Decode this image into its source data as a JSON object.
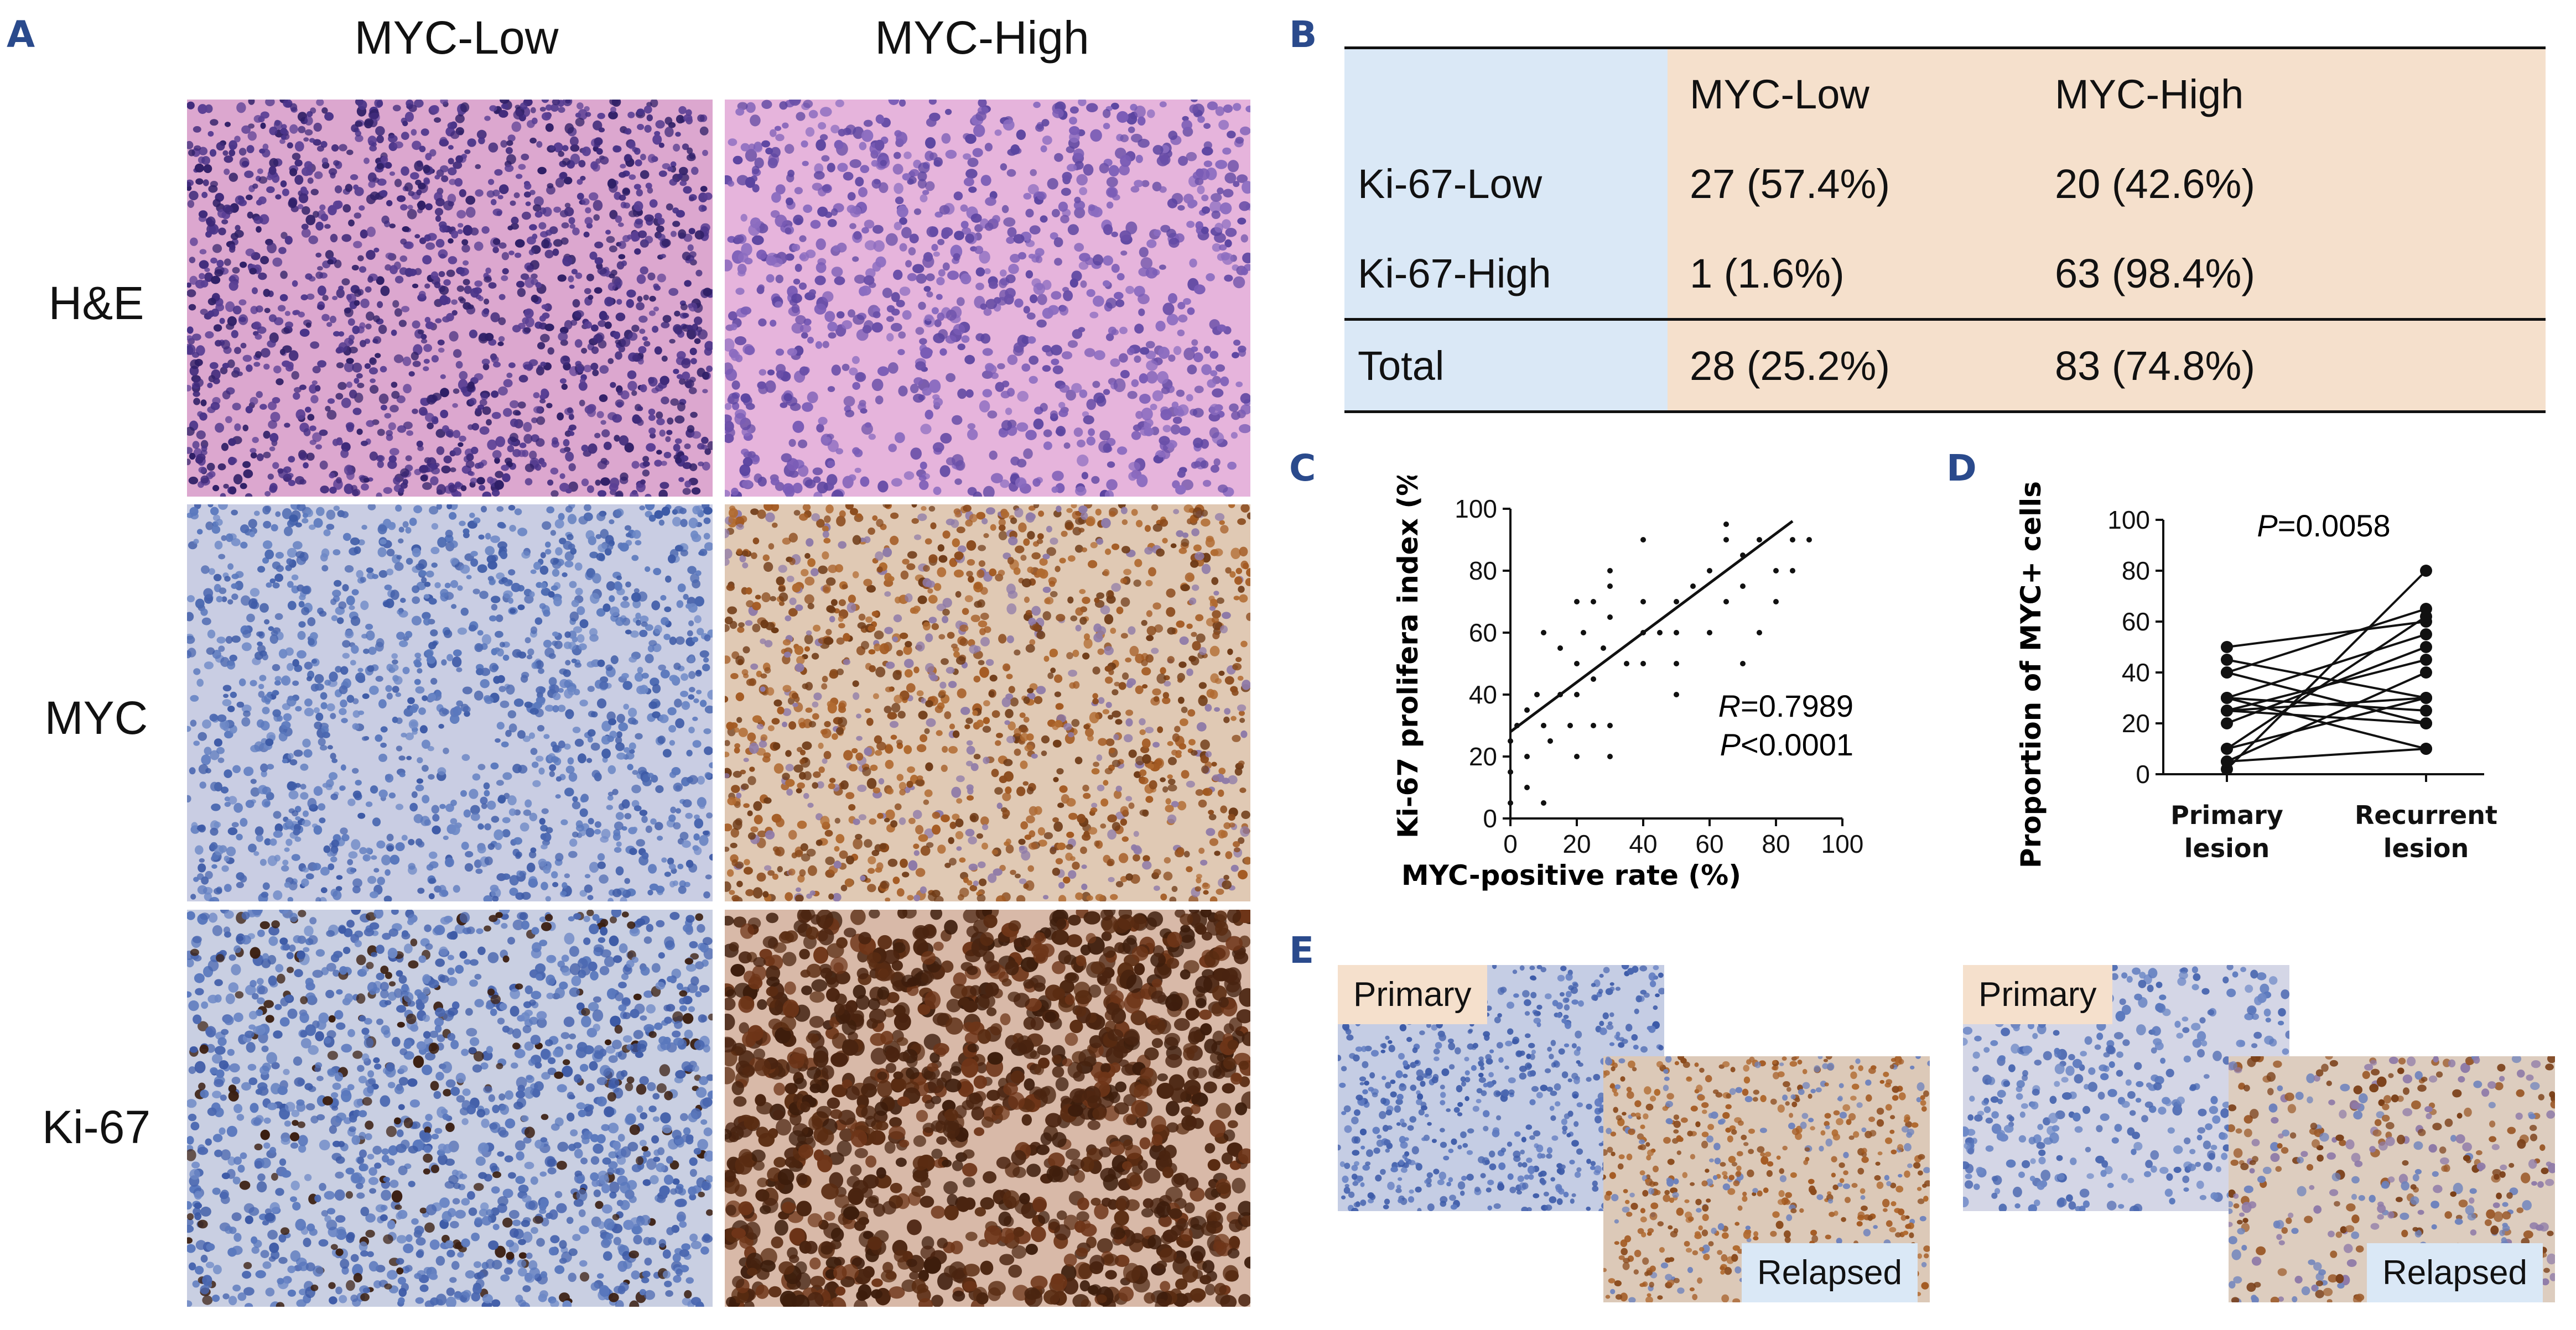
{
  "panels": {
    "A": "A",
    "B": "B",
    "C": "C",
    "D": "D",
    "E": "E"
  },
  "panelA": {
    "columns": [
      "MYC-Low",
      "MYC-High"
    ],
    "rows": [
      "H&E",
      "MYC",
      "Ki-67"
    ]
  },
  "panelB": {
    "header": [
      "",
      "MYC-Low",
      "MYC-High"
    ],
    "rows": [
      [
        "Ki-67-Low",
        "27 (57.4%)",
        "20 (42.6%)"
      ],
      [
        "Ki-67-High",
        "1 (1.6%)",
        "63 (98.4%)"
      ],
      [
        "Total",
        "28 (25.2%)",
        "83 (74.8%)"
      ]
    ]
  },
  "chart_data": [
    {
      "type": "scatter",
      "panel": "C",
      "xlabel": "MYC-positive rate (%)",
      "ylabel": "Ki-67 prolifera index (%)",
      "xlim": [
        0,
        100
      ],
      "ylim": [
        0,
        100
      ],
      "xticks": [
        "0",
        "20",
        "40",
        "60",
        "80",
        "100"
      ],
      "yticks": [
        "0",
        "20",
        "40",
        "60",
        "80",
        "100"
      ],
      "points": [
        [
          0,
          5
        ],
        [
          0,
          15
        ],
        [
          0,
          25
        ],
        [
          2,
          30
        ],
        [
          5,
          10
        ],
        [
          5,
          20
        ],
        [
          5,
          35
        ],
        [
          8,
          40
        ],
        [
          10,
          5
        ],
        [
          10,
          30
        ],
        [
          10,
          60
        ],
        [
          12,
          25
        ],
        [
          15,
          40
        ],
        [
          15,
          55
        ],
        [
          18,
          30
        ],
        [
          20,
          20
        ],
        [
          20,
          40
        ],
        [
          20,
          50
        ],
        [
          20,
          70
        ],
        [
          22,
          60
        ],
        [
          25,
          30
        ],
        [
          25,
          45
        ],
        [
          25,
          70
        ],
        [
          28,
          55
        ],
        [
          30,
          20
        ],
        [
          30,
          30
        ],
        [
          30,
          65
        ],
        [
          30,
          75
        ],
        [
          30,
          80
        ],
        [
          35,
          50
        ],
        [
          40,
          50
        ],
        [
          40,
          60
        ],
        [
          40,
          70
        ],
        [
          40,
          90
        ],
        [
          45,
          60
        ],
        [
          50,
          40
        ],
        [
          50,
          50
        ],
        [
          50,
          60
        ],
        [
          50,
          70
        ],
        [
          55,
          75
        ],
        [
          60,
          60
        ],
        [
          60,
          80
        ],
        [
          65,
          70
        ],
        [
          65,
          90
        ],
        [
          65,
          95
        ],
        [
          70,
          50
        ],
        [
          70,
          75
        ],
        [
          70,
          85
        ],
        [
          75,
          60
        ],
        [
          75,
          90
        ],
        [
          80,
          70
        ],
        [
          80,
          80
        ],
        [
          85,
          80
        ],
        [
          85,
          90
        ],
        [
          90,
          90
        ]
      ],
      "fit": {
        "intercept": 28,
        "slope": 0.8,
        "x_end": 85
      },
      "annotations": {
        "R_label": "R",
        "R_value": "=0.7989",
        "P_label": "P",
        "P_value": "<0.0001"
      }
    },
    {
      "type": "line",
      "panel": "D",
      "ylabel": "Proportion of MYC+ cells",
      "categories": [
        "Primary lesion",
        "Recurrent lesion"
      ],
      "category_lines": [
        [
          "Primary",
          "lesion"
        ],
        [
          "Recurrent",
          "lesion"
        ]
      ],
      "ylim": [
        0,
        100
      ],
      "yticks": [
        "0",
        "20",
        "40",
        "60",
        "80",
        "100"
      ],
      "pairs": [
        [
          50,
          60
        ],
        [
          45,
          30
        ],
        [
          40,
          65
        ],
        [
          40,
          20
        ],
        [
          30,
          55
        ],
        [
          30,
          25
        ],
        [
          30,
          10
        ],
        [
          25,
          45
        ],
        [
          25,
          30
        ],
        [
          25,
          20
        ],
        [
          20,
          50
        ],
        [
          10,
          62
        ],
        [
          10,
          30
        ],
        [
          5,
          40
        ],
        [
          2,
          80
        ],
        [
          5,
          10
        ]
      ],
      "annotation": {
        "P_label": "P",
        "P_value": "=0.0058"
      }
    }
  ],
  "panelE": {
    "primary": "Primary",
    "relapsed": "Relapsed"
  }
}
